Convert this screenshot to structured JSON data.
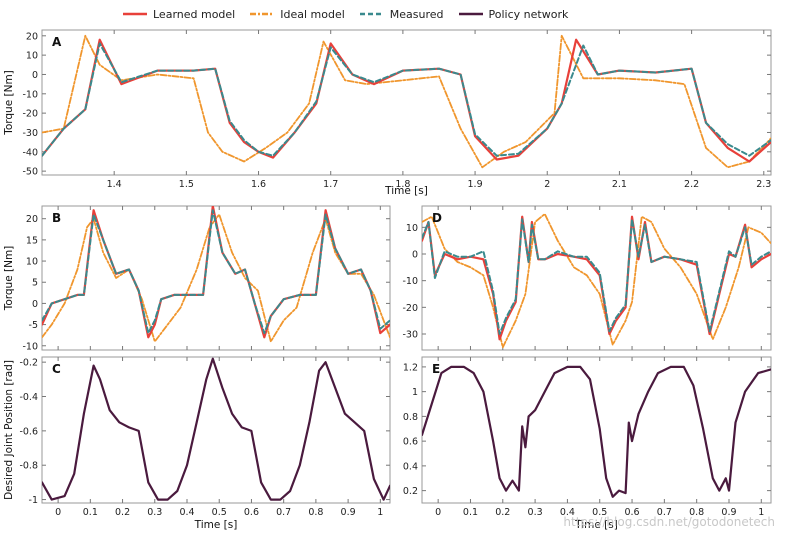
{
  "watermark": "https://blog.csdn.net/gotodonetech",
  "colors": {
    "learned": "#e8403a",
    "ideal": "#f0962d",
    "measured": "#3a8a8e",
    "policy": "#4a1a3e"
  },
  "chart_data": [
    {
      "panel": "A",
      "type": "line",
      "xlabel": "Time [s]",
      "ylabel": "Torque [Nm]",
      "xlim": [
        1.3,
        2.31
      ],
      "ylim": [
        -52,
        23
      ],
      "xticks": [
        1.4,
        1.5,
        1.6,
        1.7,
        1.8,
        1.9,
        2.0,
        2.1,
        2.2,
        2.3
      ],
      "xtick_labels": [
        "1.4",
        "1.5",
        "1.6",
        "1.7",
        "1.8",
        "1.9",
        "2",
        "2.1",
        "2.2",
        "2.3"
      ],
      "yticks": [
        20,
        10,
        0,
        -10,
        -20,
        -30,
        -40,
        -50
      ],
      "series": [
        {
          "name": "Learned model",
          "x": [
            1.3,
            1.33,
            1.36,
            1.38,
            1.41,
            1.46,
            1.51,
            1.54,
            1.56,
            1.58,
            1.6,
            1.62,
            1.65,
            1.68,
            1.7,
            1.73,
            1.76,
            1.8,
            1.85,
            1.88,
            1.9,
            1.93,
            1.96,
            2.0,
            2.02,
            2.04,
            2.07,
            2.1,
            2.15,
            2.2,
            2.22,
            2.25,
            2.28,
            2.31
          ],
          "y": [
            -42,
            -28,
            -18,
            18,
            -5,
            2,
            2,
            3,
            -25,
            -35,
            -40,
            -43,
            -30,
            -15,
            16,
            0,
            -5,
            2,
            3,
            0,
            -32,
            -44,
            -42,
            -28,
            -15,
            18,
            0,
            2,
            1,
            3,
            -25,
            -38,
            -45,
            -35
          ]
        },
        {
          "name": "Ideal model",
          "x": [
            1.3,
            1.33,
            1.36,
            1.38,
            1.41,
            1.46,
            1.51,
            1.53,
            1.55,
            1.58,
            1.61,
            1.64,
            1.67,
            1.69,
            1.72,
            1.75,
            1.8,
            1.85,
            1.88,
            1.91,
            1.94,
            1.97,
            2.01,
            2.02,
            2.05,
            2.1,
            2.15,
            2.19,
            2.22,
            2.25,
            2.28,
            2.31
          ],
          "y": [
            -30,
            -28,
            20,
            5,
            -3,
            0,
            -2,
            -30,
            -40,
            -45,
            -38,
            -30,
            -15,
            17,
            -3,
            -5,
            -3,
            -1,
            -28,
            -48,
            -40,
            -35,
            -20,
            20,
            -2,
            -2,
            -3,
            -5,
            -38,
            -48,
            -45,
            -33
          ]
        },
        {
          "name": "Measured",
          "x": [
            1.3,
            1.33,
            1.36,
            1.38,
            1.41,
            1.46,
            1.51,
            1.54,
            1.56,
            1.58,
            1.6,
            1.62,
            1.65,
            1.68,
            1.7,
            1.73,
            1.76,
            1.8,
            1.85,
            1.88,
            1.9,
            1.93,
            1.96,
            2.0,
            2.02,
            2.05,
            2.07,
            2.1,
            2.15,
            2.2,
            2.22,
            2.25,
            2.28,
            2.31
          ],
          "y": [
            -42,
            -28,
            -18,
            16,
            -4,
            2,
            2,
            3,
            -24,
            -34,
            -40,
            -42,
            -30,
            -14,
            14,
            0,
            -4,
            2,
            3,
            0,
            -31,
            -42,
            -41,
            -28,
            -15,
            15,
            0,
            2,
            1,
            3,
            -25,
            -36,
            -42,
            -34
          ]
        }
      ]
    },
    {
      "panel": "B",
      "type": "line",
      "xlabel": "",
      "ylabel": "Torque [Nm]",
      "xlim": [
        -0.05,
        1.03
      ],
      "ylim": [
        -11,
        23
      ],
      "xticks": [
        0,
        0.1,
        0.2,
        0.3,
        0.4,
        0.5,
        0.6,
        0.7,
        0.8,
        0.9,
        1
      ],
      "xtick_labels": [],
      "yticks": [
        20,
        15,
        10,
        5,
        0,
        -5,
        -10
      ],
      "series": [
        {
          "name": "Learned model",
          "x": [
            -0.05,
            -0.02,
            0.02,
            0.06,
            0.08,
            0.11,
            0.14,
            0.18,
            0.22,
            0.25,
            0.28,
            0.3,
            0.32,
            0.36,
            0.4,
            0.45,
            0.48,
            0.51,
            0.55,
            0.58,
            0.61,
            0.64,
            0.66,
            0.7,
            0.75,
            0.8,
            0.83,
            0.86,
            0.9,
            0.94,
            0.97,
            1.0,
            1.03
          ],
          "y": [
            -5,
            0,
            1,
            2,
            2,
            22,
            15,
            7,
            8,
            3,
            -8,
            -5,
            1,
            2,
            2,
            2,
            23,
            12,
            7,
            8,
            0,
            -8,
            -3,
            1,
            2,
            2,
            22,
            13,
            7,
            8,
            3,
            -7,
            -5
          ]
        },
        {
          "name": "Ideal model",
          "x": [
            -0.05,
            -0.02,
            0.02,
            0.06,
            0.09,
            0.11,
            0.14,
            0.18,
            0.22,
            0.26,
            0.3,
            0.34,
            0.38,
            0.43,
            0.47,
            0.5,
            0.54,
            0.58,
            0.62,
            0.66,
            0.7,
            0.74,
            0.79,
            0.83,
            0.86,
            0.9,
            0.94,
            0.98,
            1.03
          ],
          "y": [
            -8,
            -5,
            0,
            8,
            18,
            20,
            12,
            6,
            8,
            1,
            -9,
            -5,
            -1,
            8,
            18,
            21,
            12,
            6,
            3,
            -9,
            -4,
            -1,
            12,
            20,
            12,
            7,
            7,
            2,
            -8
          ]
        },
        {
          "name": "Measured",
          "x": [
            -0.05,
            -0.02,
            0.02,
            0.06,
            0.08,
            0.11,
            0.14,
            0.18,
            0.22,
            0.25,
            0.28,
            0.3,
            0.32,
            0.36,
            0.4,
            0.45,
            0.48,
            0.51,
            0.55,
            0.58,
            0.61,
            0.64,
            0.66,
            0.7,
            0.75,
            0.8,
            0.83,
            0.86,
            0.9,
            0.94,
            0.97,
            1.0,
            1.03
          ],
          "y": [
            -4,
            0,
            1,
            2,
            2,
            21,
            15,
            7,
            8,
            3,
            -7,
            -4,
            1,
            2,
            2,
            2,
            22,
            12,
            7,
            8,
            0,
            -7,
            -3,
            1,
            2,
            2,
            21,
            13,
            7,
            8,
            3,
            -6,
            -4
          ]
        }
      ]
    },
    {
      "panel": "C",
      "type": "line",
      "xlabel": "Time [s]",
      "ylabel": "Desired Joint Position [rad]",
      "xlim": [
        -0.05,
        1.03
      ],
      "ylim": [
        -1.02,
        -0.17
      ],
      "xticks": [
        0,
        0.1,
        0.2,
        0.3,
        0.4,
        0.5,
        0.6,
        0.7,
        0.8,
        0.9,
        1
      ],
      "xtick_labels": [
        "0",
        "0.1",
        "0.2",
        "0.3",
        "0.4",
        "0.5",
        "0.6",
        "0.7",
        "0.8",
        "0.9",
        "1"
      ],
      "yticks": [
        -0.2,
        -0.4,
        -0.6,
        -0.8,
        -1.0
      ],
      "ytick_labels": [
        "-0.2",
        "-0.4",
        "-0.6",
        "-0.8",
        "-1"
      ],
      "series": [
        {
          "name": "Policy network",
          "x": [
            -0.05,
            -0.02,
            0.02,
            0.05,
            0.08,
            0.11,
            0.13,
            0.16,
            0.19,
            0.22,
            0.25,
            0.28,
            0.31,
            0.34,
            0.37,
            0.4,
            0.43,
            0.46,
            0.48,
            0.51,
            0.54,
            0.57,
            0.6,
            0.63,
            0.66,
            0.69,
            0.72,
            0.75,
            0.78,
            0.81,
            0.83,
            0.86,
            0.89,
            0.92,
            0.95,
            0.98,
            1.01,
            1.03
          ],
          "y": [
            -0.9,
            -1.0,
            -0.98,
            -0.85,
            -0.5,
            -0.22,
            -0.3,
            -0.48,
            -0.55,
            -0.58,
            -0.6,
            -0.9,
            -1.0,
            -1.0,
            -0.95,
            -0.8,
            -0.55,
            -0.3,
            -0.18,
            -0.35,
            -0.5,
            -0.58,
            -0.6,
            -0.9,
            -1.0,
            -1.0,
            -0.95,
            -0.8,
            -0.55,
            -0.25,
            -0.2,
            -0.35,
            -0.5,
            -0.55,
            -0.6,
            -0.88,
            -1.0,
            -0.92
          ]
        }
      ]
    },
    {
      "panel": "D",
      "type": "line",
      "xlabel": "",
      "ylabel": "",
      "xlim": [
        -0.05,
        1.03
      ],
      "ylim": [
        -36,
        18
      ],
      "xticks": [
        0,
        0.1,
        0.2,
        0.3,
        0.4,
        0.5,
        0.6,
        0.7,
        0.8,
        0.9,
        1
      ],
      "xtick_labels": [],
      "yticks": [
        10,
        0,
        -10,
        -20,
        -30
      ],
      "series": [
        {
          "name": "Learned model",
          "x": [
            -0.05,
            -0.03,
            -0.01,
            0.02,
            0.06,
            0.1,
            0.14,
            0.17,
            0.19,
            0.21,
            0.24,
            0.26,
            0.28,
            0.29,
            0.31,
            0.33,
            0.37,
            0.42,
            0.46,
            0.5,
            0.53,
            0.55,
            0.58,
            0.6,
            0.62,
            0.64,
            0.66,
            0.7,
            0.75,
            0.8,
            0.84,
            0.86,
            0.88,
            0.9,
            0.92,
            0.95,
            0.97,
            1.0,
            1.03
          ],
          "y": [
            5,
            12,
            -8,
            0,
            -2,
            -1,
            -2,
            -15,
            -32,
            -25,
            -18,
            14,
            -3,
            12,
            -2,
            -2,
            0,
            -1,
            -2,
            -8,
            -30,
            -25,
            -20,
            14,
            -2,
            12,
            -3,
            -1,
            -2,
            -4,
            -30,
            -20,
            -10,
            0,
            -1,
            11,
            -5,
            -2,
            0
          ]
        },
        {
          "name": "Ideal model",
          "x": [
            -0.05,
            -0.02,
            0.02,
            0.06,
            0.1,
            0.14,
            0.17,
            0.2,
            0.24,
            0.27,
            0.3,
            0.33,
            0.37,
            0.42,
            0.46,
            0.5,
            0.54,
            0.58,
            0.6,
            0.63,
            0.66,
            0.7,
            0.75,
            0.8,
            0.85,
            0.89,
            0.93,
            0.96,
            1.0,
            1.03
          ],
          "y": [
            12,
            14,
            2,
            -3,
            -5,
            -8,
            -20,
            -35,
            -25,
            -15,
            12,
            15,
            5,
            -5,
            -8,
            -15,
            -34,
            -25,
            -18,
            14,
            12,
            2,
            -5,
            -15,
            -32,
            -20,
            -5,
            10,
            8,
            4
          ]
        },
        {
          "name": "Measured",
          "x": [
            -0.05,
            -0.03,
            -0.01,
            0.02,
            0.06,
            0.1,
            0.14,
            0.17,
            0.19,
            0.21,
            0.24,
            0.26,
            0.28,
            0.29,
            0.31,
            0.33,
            0.37,
            0.42,
            0.46,
            0.5,
            0.53,
            0.55,
            0.58,
            0.6,
            0.62,
            0.64,
            0.66,
            0.7,
            0.75,
            0.8,
            0.84,
            0.86,
            0.88,
            0.9,
            0.92,
            0.95,
            0.97,
            1.0,
            1.03
          ],
          "y": [
            6,
            12,
            -9,
            1,
            -1,
            -1,
            1,
            -14,
            -30,
            -24,
            -17,
            13,
            -3,
            11,
            -2,
            -2,
            1,
            -1,
            -1,
            -7,
            -29,
            -24,
            -19,
            13,
            -1,
            11,
            -3,
            -1,
            -2,
            -3,
            -29,
            -19,
            -9,
            1,
            -1,
            10,
            -4,
            -1,
            1
          ]
        }
      ]
    },
    {
      "panel": "E",
      "type": "line",
      "xlabel": "Time [s]",
      "ylabel": "",
      "xlim": [
        -0.05,
        1.03
      ],
      "ylim": [
        0.1,
        1.28
      ],
      "xticks": [
        0,
        0.1,
        0.2,
        0.3,
        0.4,
        0.5,
        0.6,
        0.7,
        0.8,
        0.9,
        1
      ],
      "xtick_labels": [
        "0",
        "0.1",
        "0.2",
        "0.3",
        "0.4",
        "0.5",
        "0.6",
        "0.7",
        "0.8",
        "0.9",
        "1"
      ],
      "yticks": [
        1.2,
        1.0,
        0.8,
        0.6,
        0.4,
        0.2
      ],
      "ytick_labels": [
        "1.2",
        "1",
        "0.8",
        "0.6",
        "0.4",
        "0.2"
      ],
      "series": [
        {
          "name": "Policy network",
          "x": [
            -0.05,
            -0.02,
            0.01,
            0.04,
            0.08,
            0.11,
            0.14,
            0.17,
            0.19,
            0.21,
            0.23,
            0.25,
            0.26,
            0.27,
            0.28,
            0.3,
            0.33,
            0.36,
            0.4,
            0.44,
            0.47,
            0.5,
            0.52,
            0.54,
            0.56,
            0.58,
            0.59,
            0.6,
            0.62,
            0.65,
            0.68,
            0.72,
            0.76,
            0.79,
            0.82,
            0.85,
            0.87,
            0.89,
            0.9,
            0.92,
            0.95,
            0.99,
            1.03
          ],
          "y": [
            0.65,
            0.9,
            1.15,
            1.2,
            1.2,
            1.15,
            1.0,
            0.6,
            0.3,
            0.2,
            0.28,
            0.2,
            0.72,
            0.55,
            0.8,
            0.85,
            1.0,
            1.15,
            1.2,
            1.2,
            1.1,
            0.7,
            0.3,
            0.15,
            0.2,
            0.18,
            0.75,
            0.6,
            0.82,
            1.0,
            1.15,
            1.2,
            1.2,
            1.05,
            0.7,
            0.3,
            0.2,
            0.3,
            0.2,
            0.75,
            1.0,
            1.15,
            1.18
          ]
        }
      ]
    }
  ]
}
